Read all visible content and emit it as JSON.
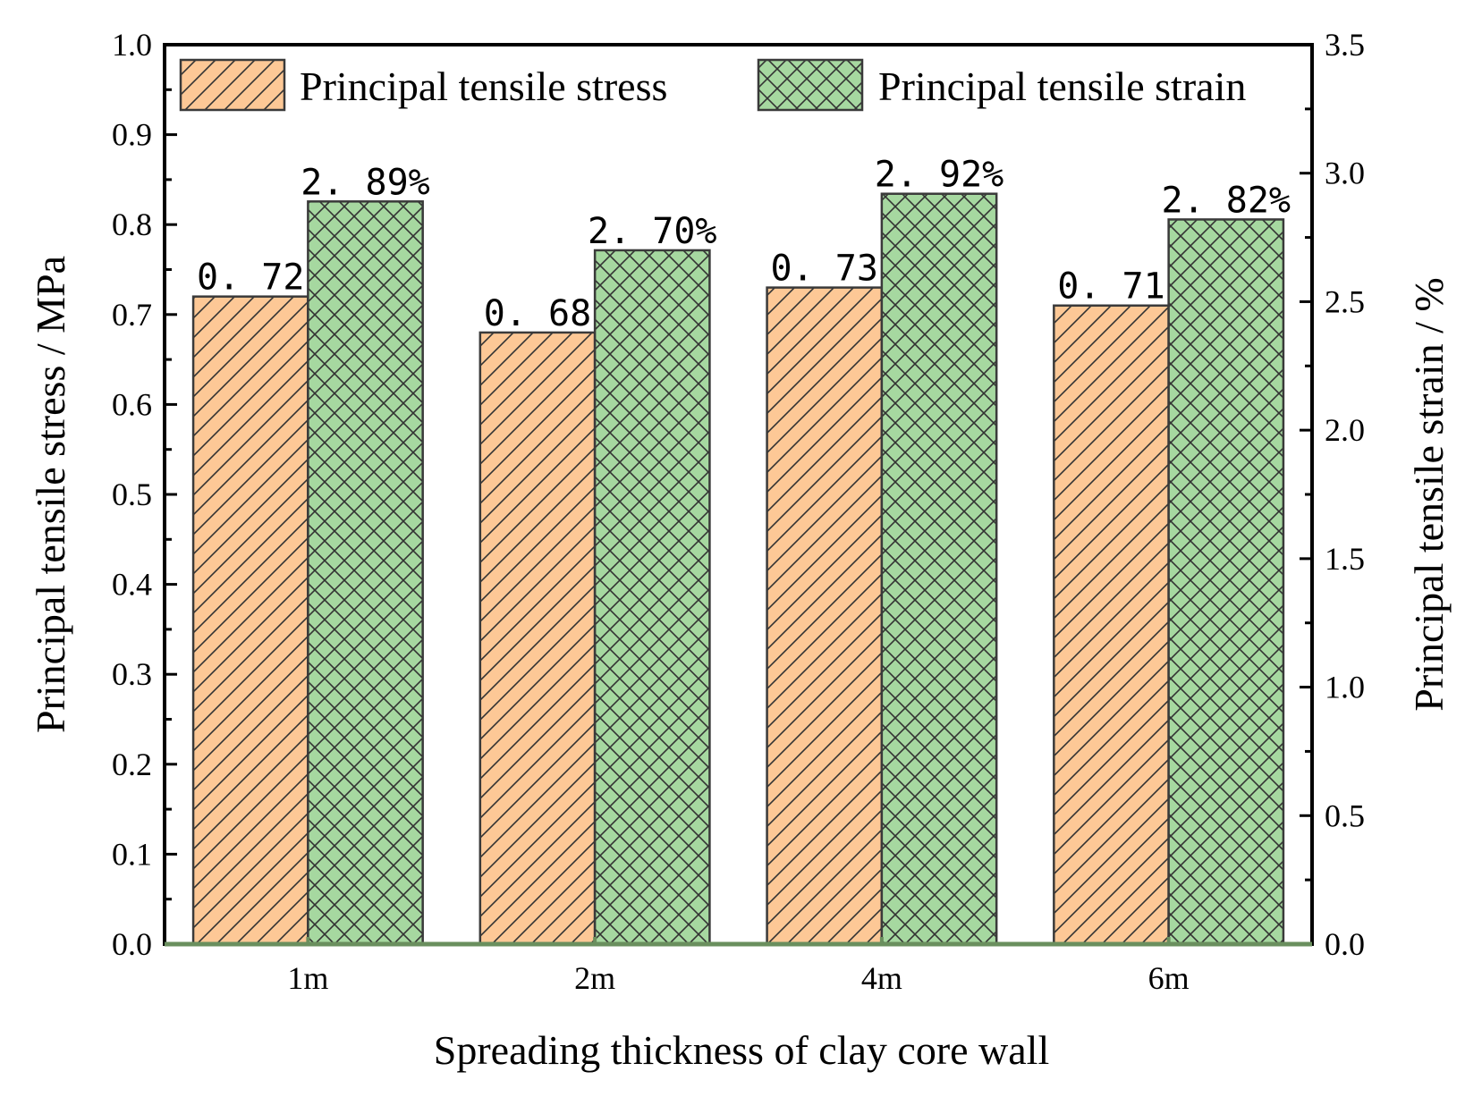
{
  "chart_data": {
    "type": "bar",
    "categories": [
      "1m",
      "2m",
      "4m",
      "6m"
    ],
    "series": [
      {
        "name": "Principal tensile stress",
        "axis": "left",
        "values": [
          0.72,
          0.68,
          0.73,
          0.71
        ],
        "labels": [
          "0. 72",
          "0. 68",
          "0. 73",
          "0. 71"
        ],
        "color": "#FDC896",
        "pattern": "diagonal"
      },
      {
        "name": "Principal tensile strain",
        "axis": "right",
        "values": [
          2.89,
          2.7,
          2.92,
          2.82
        ],
        "labels": [
          "2. 89%",
          "2. 70%",
          "2. 92%",
          "2. 82%"
        ],
        "color": "#A6D8A0",
        "pattern": "crosshatch"
      }
    ],
    "xlabel": "Spreading thickness of clay core wall",
    "ylabel_left": "Principal tensile stress / MPa",
    "ylabel_right": "Principal tensile strain / %",
    "ylim_left": [
      0.0,
      1.0
    ],
    "yticks_left": [
      "0.0",
      "0.1",
      "0.2",
      "0.3",
      "0.4",
      "0.5",
      "0.6",
      "0.7",
      "0.8",
      "0.9",
      "1.0"
    ],
    "ylim_right": [
      0.0,
      3.5
    ],
    "yticks_right": [
      "0.0",
      "0.5",
      "1.0",
      "1.5",
      "2.0",
      "2.5",
      "3.0",
      "3.5"
    ],
    "legend": "top",
    "grid": false,
    "baseline_color": "#6A8F5E",
    "outline_color": "#3A3A3A"
  }
}
